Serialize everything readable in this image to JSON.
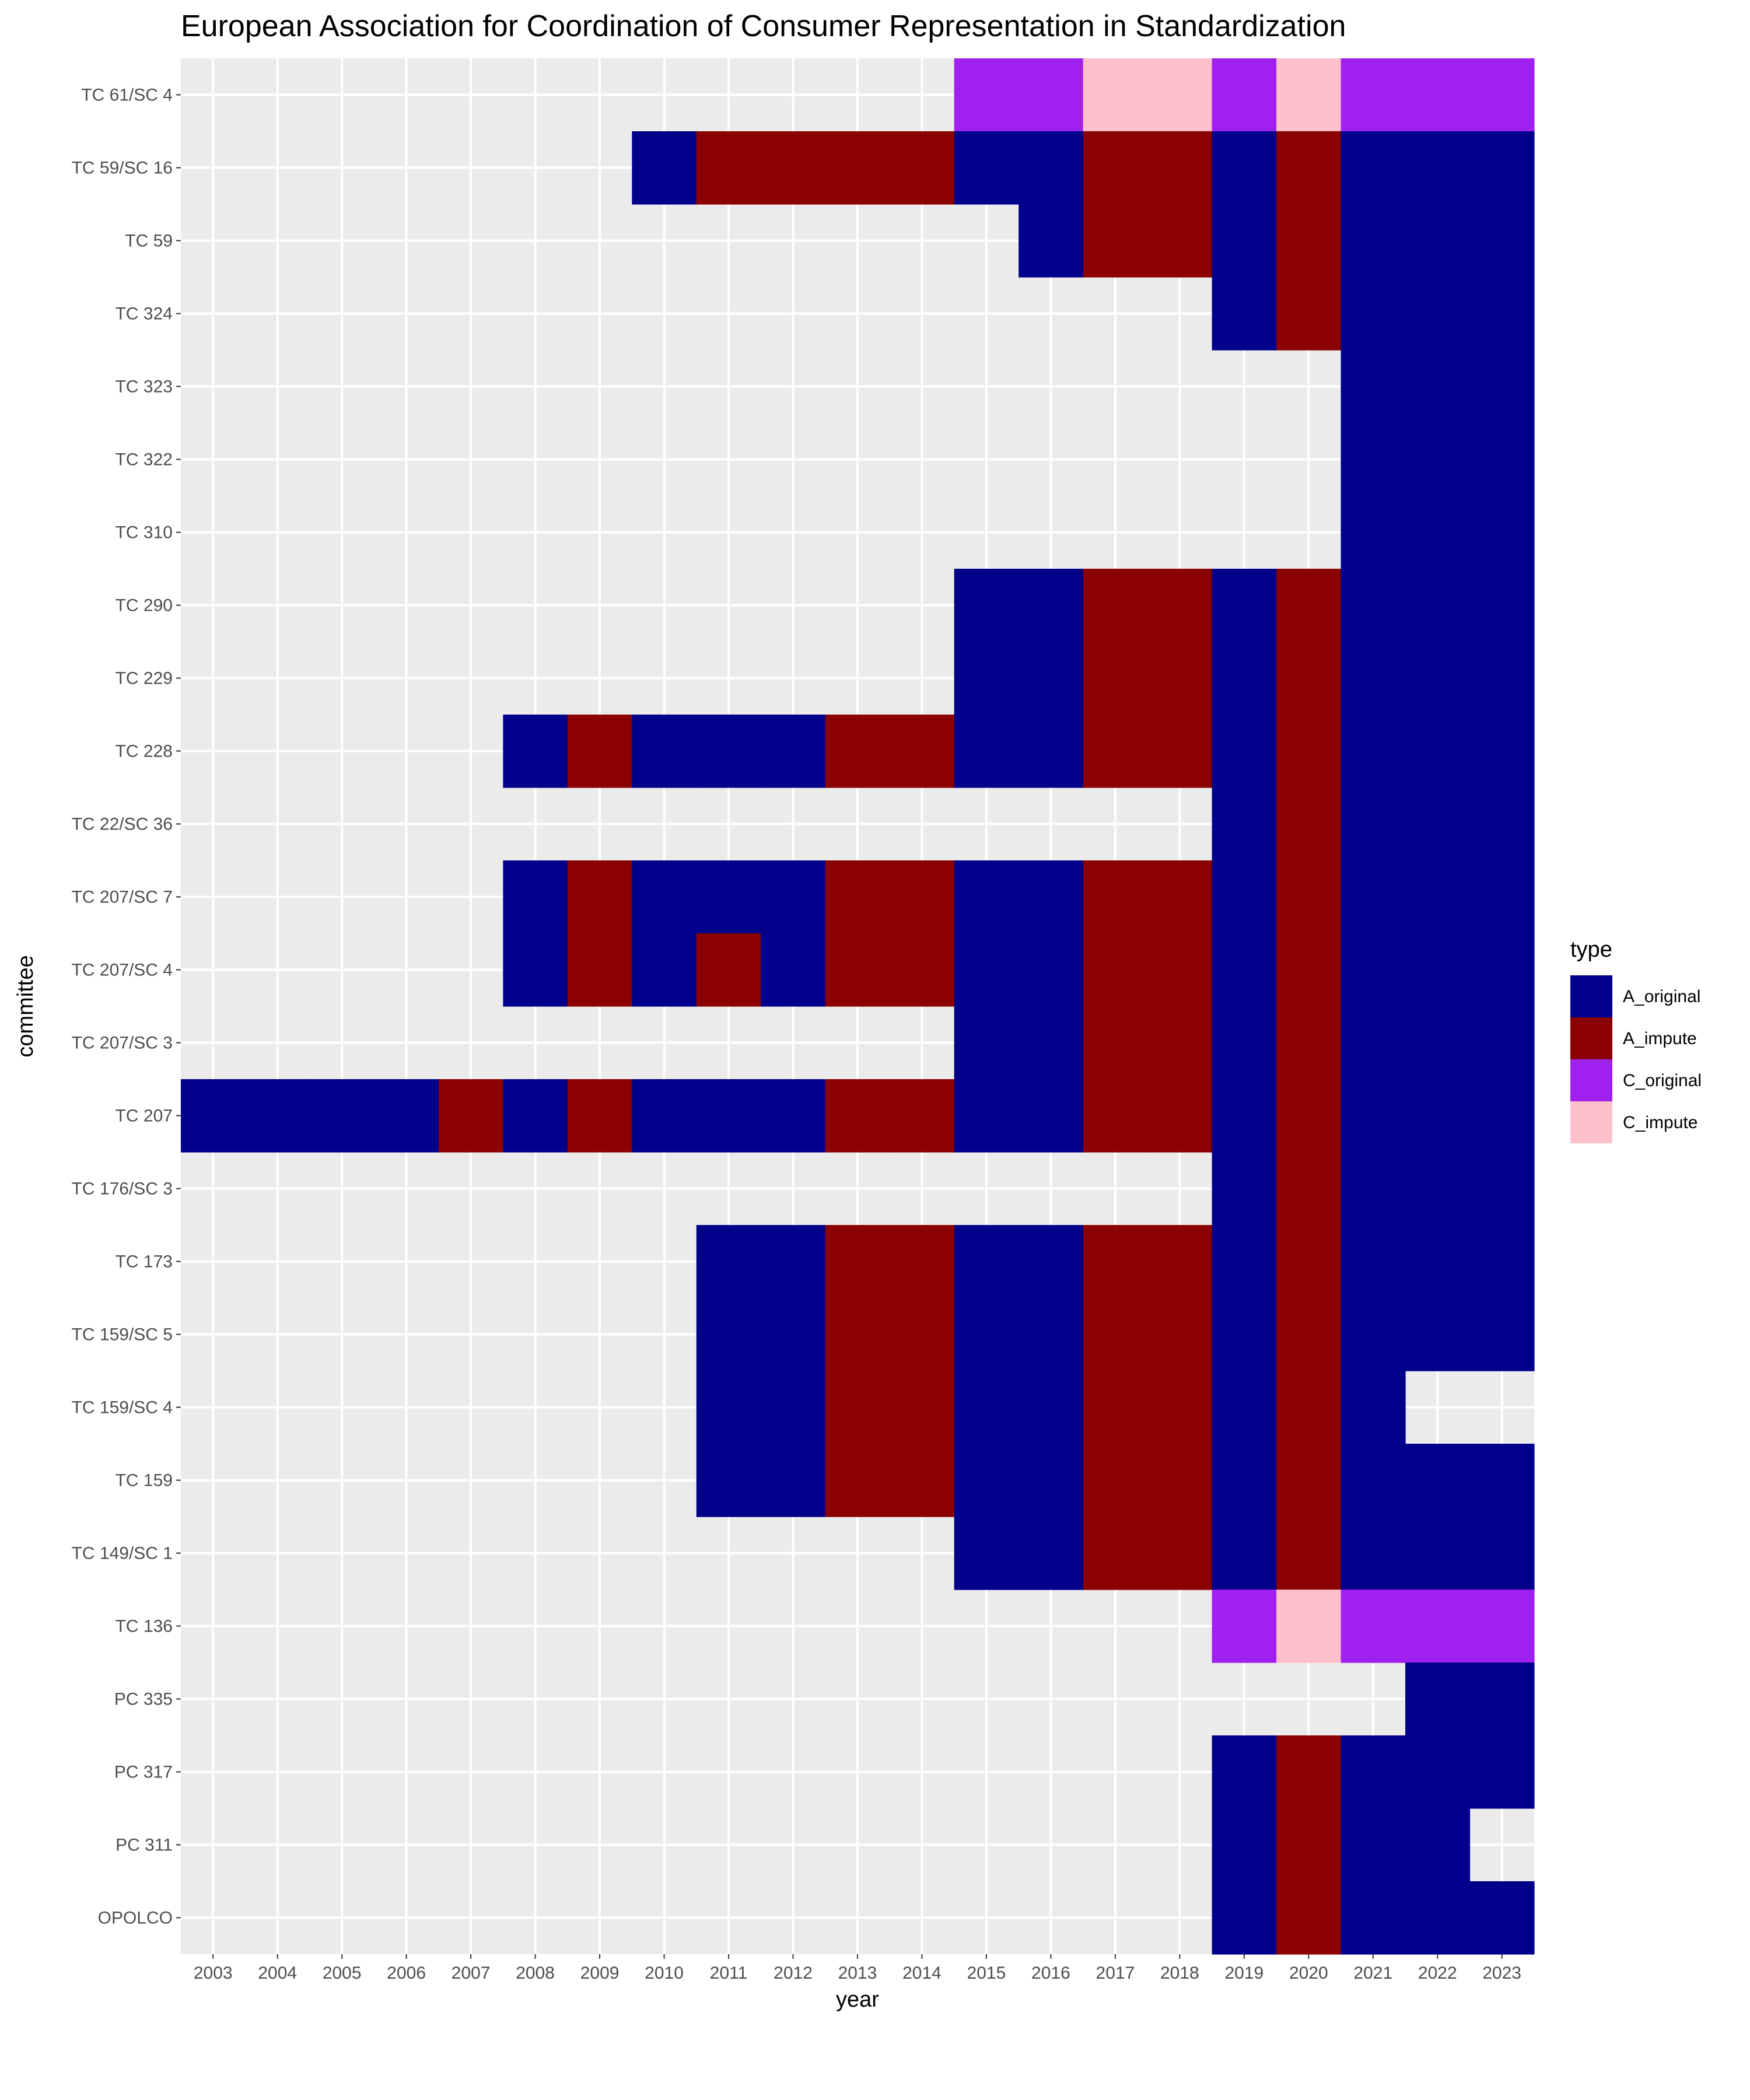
{
  "chart_data": {
    "type": "heatmap",
    "title": "European Association for Coordination of Consumer Representation in Standardization",
    "xlabel": "year",
    "ylabel": "committee",
    "legend_title": "type",
    "legend_position": "right",
    "grid": true,
    "x": [
      "2003",
      "2004",
      "2005",
      "2006",
      "2007",
      "2008",
      "2009",
      "2010",
      "2011",
      "2012",
      "2013",
      "2014",
      "2015",
      "2016",
      "2017",
      "2018",
      "2019",
      "2020",
      "2021",
      "2022",
      "2023"
    ],
    "y": [
      "TC 61/SC 4",
      "TC 59/SC 16",
      "TC 59",
      "TC 324",
      "TC 323",
      "TC 322",
      "TC 310",
      "TC 290",
      "TC 229",
      "TC 228",
      "TC 22/SC 36",
      "TC 207/SC 7",
      "TC 207/SC 4",
      "TC 207/SC 3",
      "TC 207",
      "TC 176/SC 3",
      "TC 173",
      "TC 159/SC 5",
      "TC 159/SC 4",
      "TC 159",
      "TC 149/SC 1",
      "TC 136",
      "PC 335",
      "PC 317",
      "PC 311",
      "OPOLCO"
    ],
    "legend": [
      {
        "code": "A",
        "label": "A_original",
        "color": "#00008B"
      },
      {
        "code": "a",
        "label": "A_impute",
        "color": "#8B0000"
      },
      {
        "code": "C",
        "label": "C_original",
        "color": "#A020F0"
      },
      {
        "code": "c",
        "label": "C_impute",
        "color": "#FFC0CB"
      }
    ],
    "cells": [
      "............CCccCcCCC",
      ".......AaaaaAAaaAaAAA",
      ".............AaaAaAAA",
      "................AaAAA",
      "..................AAA",
      "..................AAA",
      "..................AAA",
      "............AAaaAaAAA",
      "............AAaaAaAAA",
      ".....AaAAAaaAAaaAaAAA",
      "................AaAAA",
      ".....AaAAAaaAAaaAaAAA",
      ".....AaAaAaaAAaaAaAAA",
      "............AAaaAaAAA",
      "AAAAaAaAAAaaAAaaAaAAA",
      "................AaAAA",
      "........AAaaAAaaAaAAA",
      "........AAaaAAaaAaAAA",
      "........AAaaAAaaAaA..",
      "........AAaaAAaaAaAAA",
      "............AAaaAaAAA",
      "................CcCCC",
      "...................AA",
      "................AaAAA",
      "................AaAA.",
      "................AaAAA"
    ]
  }
}
